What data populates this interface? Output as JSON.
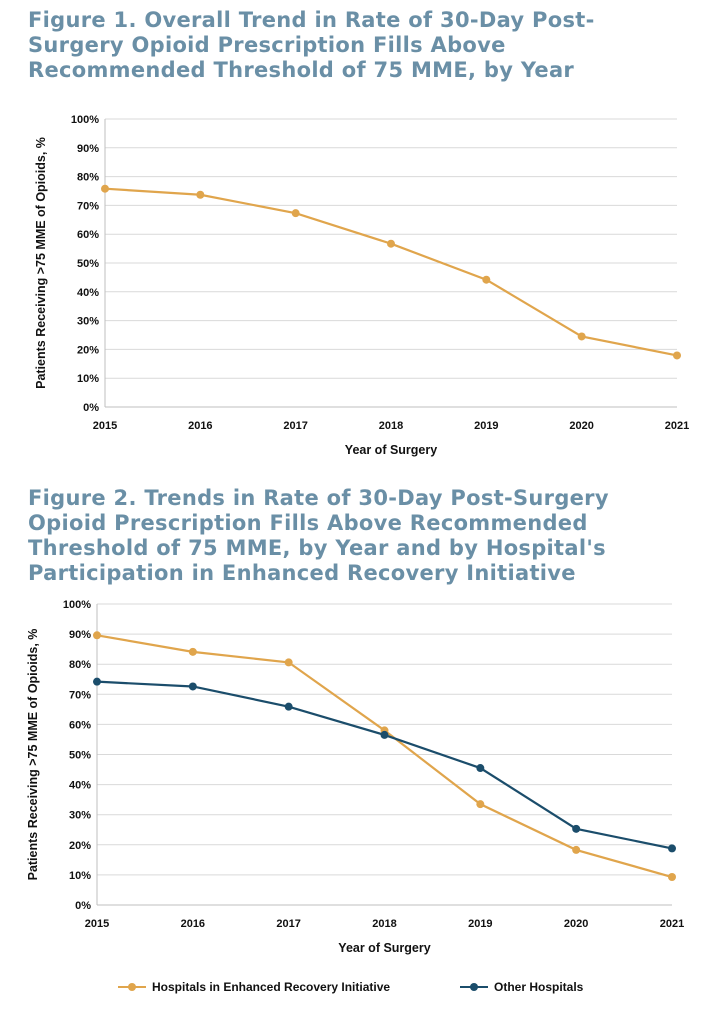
{
  "titles": {
    "fig1": "Figure 1. Overall Trend in Rate of 30-Day Post-Surgery Opioid Prescription Fills Above Recommended Threshold of 75 MME, by Year",
    "fig2": "Figure 2. Trends in Rate of 30-Day Post-Surgery Opioid Prescription Fills Above Recommended Threshold of 75 MME, by Year and by Hospital's Participation in Enhanced Recovery Initiative"
  },
  "colors": {
    "orange": "#e0a54c",
    "navy": "#1b4d6b",
    "grid": "#d9d9d9",
    "title": "#6a8fa6"
  },
  "chart_data": [
    {
      "type": "line",
      "title": "Figure 1. Overall Trend in Rate of 30-Day Post-Surgery Opioid Prescription Fills Above Recommended Threshold of 75 MME, by Year",
      "xlabel": "Year of Surgery",
      "ylabel": "Patients Receiving >75 MME of Opioids, %",
      "categories": [
        "2015",
        "2016",
        "2017",
        "2018",
        "2019",
        "2020",
        "2021"
      ],
      "yticks": [
        "0%",
        "10%",
        "20%",
        "30%",
        "40%",
        "50%",
        "60%",
        "70%",
        "80%",
        "90%",
        "100%"
      ],
      "ylim": [
        0,
        100
      ],
      "grid": true,
      "series": [
        {
          "values": [
            75.8,
            73.7,
            67.3,
            56.7,
            44.2,
            24.5,
            17.9
          ],
          "color": "#e0a54c"
        }
      ]
    },
    {
      "type": "line",
      "title": "Figure 2. Trends in Rate of 30-Day Post-Surgery Opioid Prescription Fills Above Recommended Threshold of 75 MME, by Year and by Hospital's Participation in Enhanced Recovery Initiative",
      "xlabel": "Year of Surgery",
      "ylabel": "Patients Receiving >75 MME of Opioids, %",
      "categories": [
        "2015",
        "2016",
        "2017",
        "2018",
        "2019",
        "2020",
        "2021"
      ],
      "yticks": [
        "0%",
        "10%",
        "20%",
        "30%",
        "40%",
        "50%",
        "60%",
        "70%",
        "80%",
        "90%",
        "100%"
      ],
      "ylim": [
        0,
        100
      ],
      "grid": true,
      "legend": "bottom",
      "series": [
        {
          "name": "Hospitals in Enhanced Recovery Initiative",
          "values": [
            89.6,
            84.1,
            80.6,
            58.0,
            33.5,
            18.3,
            9.3
          ],
          "color": "#e0a54c"
        },
        {
          "name": "Other Hospitals",
          "values": [
            74.2,
            72.6,
            65.9,
            56.5,
            45.5,
            25.3,
            18.8
          ],
          "color": "#1b4d6b"
        }
      ]
    }
  ]
}
